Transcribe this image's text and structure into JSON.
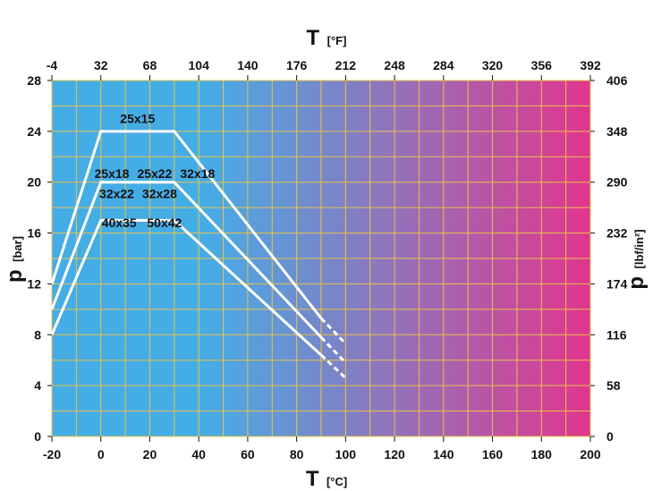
{
  "chart_data": {
    "type": "line",
    "x_axis_bottom": {
      "symbol": "T",
      "unit": "[°C]",
      "ticks": [
        -20,
        0,
        20,
        40,
        60,
        80,
        100,
        120,
        140,
        160,
        180,
        200
      ],
      "range": [
        -20,
        200
      ]
    },
    "x_axis_top": {
      "symbol": "T",
      "unit": "[°F]",
      "ticks": [
        -4,
        32,
        68,
        104,
        140,
        176,
        212,
        248,
        284,
        320,
        356,
        392
      ]
    },
    "y_axis_left": {
      "symbol": "p",
      "unit": "[bar]",
      "ticks": [
        0,
        4,
        8,
        12,
        16,
        20,
        24,
        28
      ],
      "range": [
        0,
        28
      ]
    },
    "y_axis_right": {
      "symbol": "p",
      "unit": "[lbf/in²]",
      "ticks": [
        0,
        58,
        116,
        174,
        232,
        290,
        348,
        406
      ]
    },
    "grid": true,
    "background_gradient": [
      "#45ade6",
      "#45ade6",
      "#e2358e"
    ],
    "grid_color": "#e8c24a",
    "line_color": "#ffffff",
    "series": [
      {
        "name": "25x15",
        "points": [
          [
            -20,
            12
          ],
          [
            0,
            24
          ],
          [
            30,
            24
          ],
          [
            90,
            9.3
          ]
        ],
        "dashed": [
          [
            90,
            9.3
          ],
          [
            100,
            7.3
          ]
        ]
      },
      {
        "name": "25x18 25x22 32x18 32x22 32x28",
        "points": [
          [
            -20,
            10
          ],
          [
            0,
            20
          ],
          [
            30,
            20
          ],
          [
            90,
            7.8
          ]
        ],
        "dashed": [
          [
            90,
            7.8
          ],
          [
            100,
            5.8
          ]
        ]
      },
      {
        "name": "40x35 50x42",
        "points": [
          [
            -20,
            8
          ],
          [
            0,
            17
          ],
          [
            30,
            17
          ],
          [
            90,
            6.4
          ]
        ],
        "dashed": [
          [
            90,
            6.4
          ],
          [
            100,
            4.6
          ]
        ]
      }
    ],
    "labels": [
      {
        "text": "25x15",
        "x": 15,
        "y": 25
      },
      {
        "text": "25x18",
        "x": 4.5,
        "y": 20.7
      },
      {
        "text": "25x22",
        "x": 22,
        "y": 20.7
      },
      {
        "text": "32x18",
        "x": 39.5,
        "y": 20.7
      },
      {
        "text": "32x22",
        "x": 6.5,
        "y": 19.1
      },
      {
        "text": "32x28",
        "x": 24,
        "y": 19.1
      },
      {
        "text": "40x35",
        "x": 7.5,
        "y": 16.8
      },
      {
        "text": "50x42",
        "x": 26,
        "y": 16.8
      }
    ]
  }
}
